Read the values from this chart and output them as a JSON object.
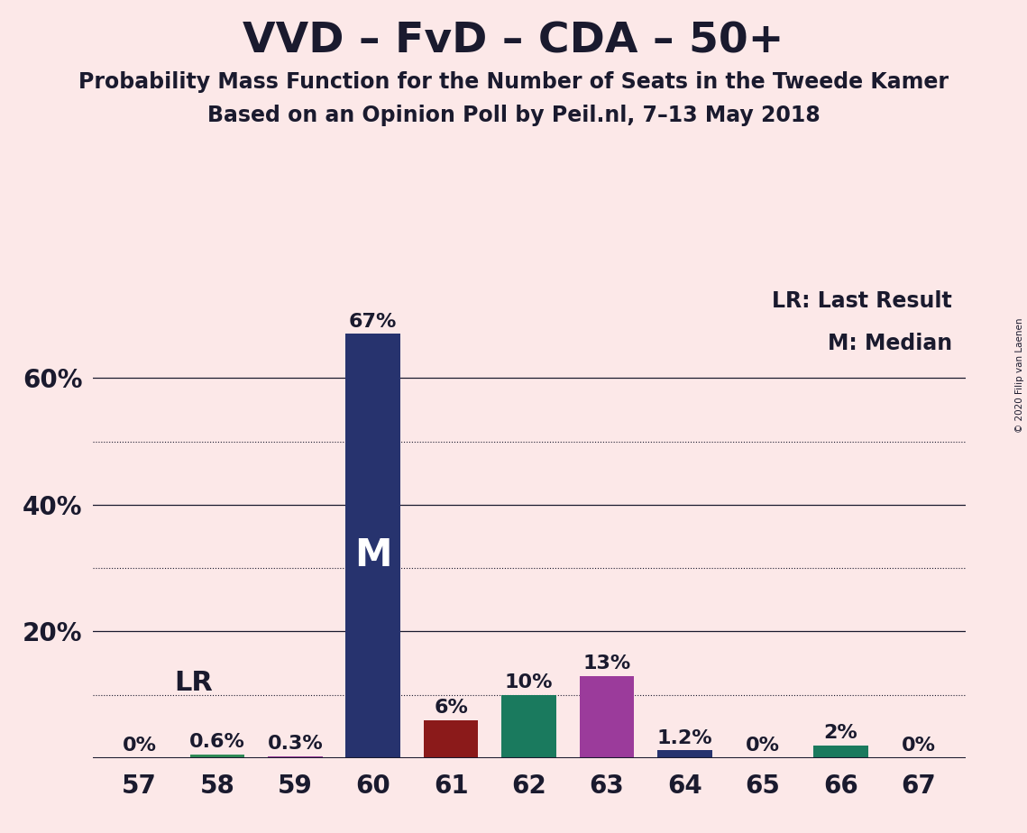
{
  "title": "VVD – FvD – CDA – 50+",
  "subtitle1": "Probability Mass Function for the Number of Seats in the Tweede Kamer",
  "subtitle2": "Based on an Opinion Poll by Peil.nl, 7–13 May 2018",
  "copyright": "© 2020 Filip van Laenen",
  "background_color": "#fce8e8",
  "categories": [
    57,
    58,
    59,
    60,
    61,
    62,
    63,
    64,
    65,
    66,
    67
  ],
  "values": [
    0.0,
    0.6,
    0.3,
    67.0,
    6.0,
    10.0,
    13.0,
    1.2,
    0.0,
    2.0,
    0.0
  ],
  "labels": [
    "0%",
    "0.6%",
    "0.3%",
    "67%",
    "6%",
    "10%",
    "13%",
    "1.2%",
    "0%",
    "2%",
    "0%"
  ],
  "bar_colors": [
    "#2e8b57",
    "#2e8b57",
    "#9b3b9b",
    "#27336e",
    "#8b1a1a",
    "#1a7a5e",
    "#9b3b9b",
    "#27336e",
    "#2e8b57",
    "#1a7a5e",
    "#2e8b57"
  ],
  "median_bar_seat": 60,
  "lr_bar_seat": 58,
  "median_label": "M",
  "lr_label": "LR",
  "legend_lr": "LR: Last Result",
  "legend_m": "M: Median",
  "ylim": [
    0,
    75
  ],
  "solid_grid_lines": [
    20,
    40,
    60
  ],
  "dotted_grid_lines": [
    10,
    30,
    50
  ],
  "title_fontsize": 34,
  "subtitle_fontsize": 17,
  "tick_fontsize": 20,
  "label_fontsize": 16,
  "median_label_fontsize": 30,
  "lr_label_fontsize": 22,
  "legend_fontsize": 17
}
